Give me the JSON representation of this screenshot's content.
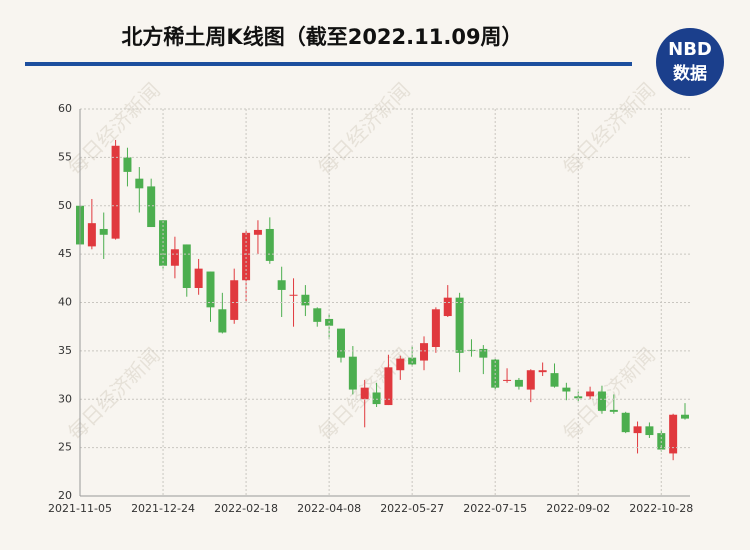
{
  "chart_data": {
    "type": "candlestick",
    "title": "北方稀土周K线图（截至2022.11.09周）",
    "logo": {
      "top": "NBD",
      "bottom": "数据"
    },
    "watermark": "每日经济新闻",
    "categories": [
      "2021-11-05",
      null,
      null,
      null,
      null,
      null,
      null,
      "2021-12-24",
      null,
      null,
      null,
      null,
      null,
      null,
      "2022-02-18",
      null,
      null,
      null,
      null,
      null,
      null,
      "2022-04-08",
      null,
      null,
      null,
      null,
      null,
      null,
      "2022-05-27",
      null,
      null,
      null,
      null,
      null,
      null,
      "2022-07-15",
      null,
      null,
      null,
      null,
      null,
      null,
      "2022-09-02",
      null,
      null,
      null,
      null,
      null,
      null,
      "2022-10-28",
      null,
      null
    ],
    "open": [
      50,
      45.8,
      47.6,
      46.6,
      55,
      52.8,
      52,
      48.5,
      43.8,
      46,
      41.5,
      43.2,
      39.3,
      38.2,
      42.3,
      47,
      47.6,
      42.3,
      40.7,
      40.8,
      39.4,
      38.3,
      37.3,
      34.4,
      30,
      30.7,
      29.4,
      33,
      34.3,
      34,
      35.4,
      38.6,
      40.5,
      35.1,
      35.2,
      34.1,
      31.9,
      32,
      31,
      32.8,
      32.7,
      31.2,
      30.3,
      30.3,
      30.8,
      28.9,
      28.6,
      26.5,
      27.2,
      26.5,
      24.4,
      28.4
    ],
    "high": [
      50,
      50.7,
      49.3,
      56.8,
      56,
      54,
      52.8,
      48.5,
      46.8,
      46,
      44.5,
      43.2,
      41,
      43.5,
      47.5,
      48.5,
      48.8,
      43.7,
      42.5,
      41.8,
      39.5,
      38.8,
      37.3,
      35.5,
      32,
      31.7,
      34.6,
      34.5,
      35.5,
      36.5,
      39.5,
      41.8,
      41,
      36.2,
      35.6,
      34.2,
      33.2,
      32.2,
      33.1,
      33.8,
      33.7,
      31.7,
      30.8,
      31.3,
      31.4,
      30.5,
      28.7,
      27.7,
      27.6,
      26.8,
      28.5,
      29.6
    ],
    "low": [
      43,
      45.5,
      44.5,
      46.5,
      52,
      49.3,
      47.8,
      43.5,
      42.5,
      40.6,
      40.8,
      38,
      36.8,
      37.8,
      40,
      45,
      44,
      38.5,
      37.5,
      38.6,
      37.5,
      36.2,
      33.8,
      30.5,
      27.1,
      29.2,
      29.4,
      32,
      33.4,
      33,
      34.8,
      38.5,
      32.8,
      34.4,
      32.6,
      31,
      31.7,
      31,
      29.7,
      32.4,
      31.2,
      29.9,
      29.8,
      30,
      28.5,
      28.5,
      26.5,
      24.4,
      26,
      24.6,
      23.7,
      27.9
    ],
    "close": [
      46,
      48.2,
      47,
      56.2,
      53.5,
      51.8,
      47.8,
      43.8,
      45.5,
      41.5,
      43.5,
      39.5,
      36.9,
      42.3,
      47.2,
      47.5,
      44.3,
      41.3,
      40.8,
      39.7,
      38,
      37.6,
      34.3,
      31,
      31.2,
      29.5,
      33.3,
      34.2,
      33.6,
      35.8,
      39.3,
      40.5,
      34.8,
      35,
      34.3,
      31.2,
      32,
      31.3,
      33,
      33,
      31.3,
      30.8,
      30.1,
      30.8,
      28.8,
      28.7,
      26.6,
      27.2,
      26.3,
      24.8,
      28.4,
      28
    ],
    "up_color": "#e0393e",
    "down_color": "#4cae4f",
    "ylim": [
      20,
      60
    ],
    "yticks": [
      20,
      25,
      30,
      35,
      40,
      45,
      50,
      55,
      60
    ],
    "grid": true
  }
}
